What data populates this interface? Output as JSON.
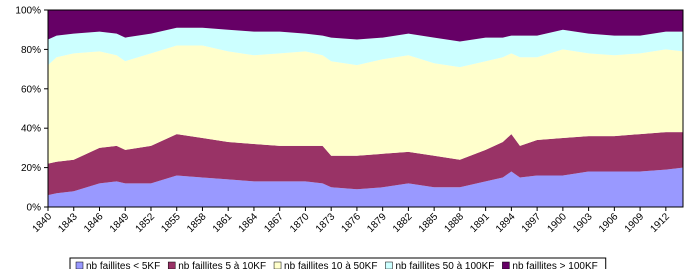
{
  "chart_data": {
    "type": "stacked-area",
    "x": [
      1840,
      1841,
      1843,
      1846,
      1848,
      1849,
      1852,
      1855,
      1858,
      1861,
      1864,
      1867,
      1870,
      1872,
      1873,
      1876,
      1879,
      1882,
      1885,
      1888,
      1891,
      1893,
      1894,
      1895,
      1897,
      1900,
      1903,
      1906,
      1909,
      1912,
      1914
    ],
    "xlim": [
      1840,
      1914
    ],
    "xticks": [
      1840,
      1843,
      1846,
      1849,
      1852,
      1855,
      1858,
      1861,
      1864,
      1867,
      1870,
      1873,
      1876,
      1879,
      1882,
      1885,
      1888,
      1891,
      1894,
      1897,
      1900,
      1903,
      1906,
      1909,
      1912
    ],
    "ylim": [
      0,
      100
    ],
    "yticks": [
      {
        "value": 0,
        "label": "0%"
      },
      {
        "value": 20,
        "label": "20%"
      },
      {
        "value": 40,
        "label": "40%"
      },
      {
        "value": 60,
        "label": "60%"
      },
      {
        "value": 80,
        "label": "80%"
      },
      {
        "value": 100,
        "label": "100%"
      }
    ],
    "legend": "bottom",
    "series": [
      {
        "name": "nb faillites < 5KF",
        "color": "#9999ff",
        "values": [
          6,
          7,
          8,
          12,
          13,
          12,
          12,
          16,
          15,
          14,
          13,
          13,
          13,
          12,
          10,
          9,
          10,
          12,
          10,
          10,
          13,
          15,
          18,
          15,
          16,
          16,
          18,
          18,
          18,
          19,
          20
        ]
      },
      {
        "name": "nb faillites 5 à 10KF",
        "color": "#993366",
        "values": [
          16,
          16,
          16,
          18,
          18,
          17,
          19,
          21,
          20,
          19,
          19,
          18,
          18,
          19,
          16,
          17,
          17,
          16,
          16,
          14,
          16,
          18,
          19,
          16,
          18,
          19,
          18,
          18,
          19,
          19,
          18
        ]
      },
      {
        "name": "nb faillites 10 à 50KF",
        "color": "#ffffcc",
        "values": [
          50,
          53,
          54,
          49,
          46,
          45,
          47,
          45,
          47,
          46,
          45,
          47,
          48,
          46,
          48,
          46,
          48,
          49,
          47,
          47,
          45,
          43,
          41,
          45,
          42,
          45,
          42,
          41,
          41,
          42,
          41
        ]
      },
      {
        "name": "nb faillites 50 à 100KF",
        "color": "#ccffff",
        "values": [
          13,
          11,
          10,
          10,
          11,
          12,
          10,
          9,
          9,
          11,
          12,
          11,
          9,
          10,
          12,
          13,
          11,
          11,
          13,
          13,
          12,
          10,
          9,
          11,
          11,
          10,
          10,
          10,
          9,
          9,
          10
        ]
      },
      {
        "name": "nb faillites > 100KF",
        "color": "#660066",
        "values": [
          15,
          13,
          12,
          11,
          12,
          14,
          12,
          9,
          9,
          10,
          11,
          11,
          12,
          13,
          14,
          15,
          14,
          12,
          14,
          16,
          14,
          14,
          13,
          13,
          13,
          10,
          12,
          13,
          13,
          11,
          11
        ]
      }
    ]
  }
}
